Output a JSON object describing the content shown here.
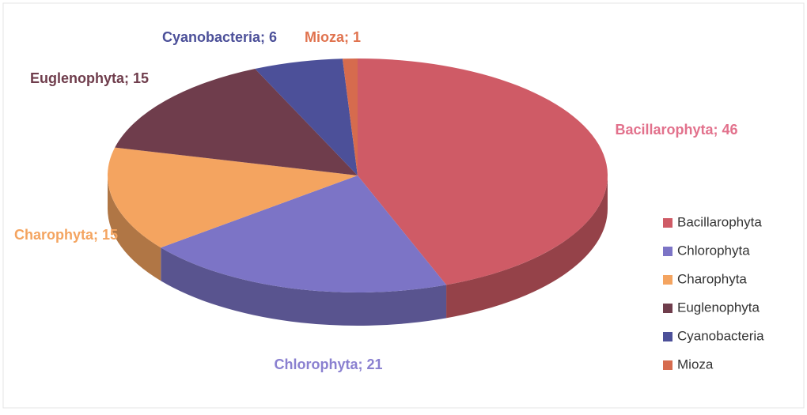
{
  "chart_data": {
    "type": "pie3d",
    "categories": [
      "Bacillarophyta",
      "Chlorophyta",
      "Charophyta",
      "Euglenophyta",
      "Cyanobacteria",
      "Mioza"
    ],
    "values": [
      46,
      21,
      15,
      15,
      6,
      1
    ],
    "value_labels": [
      "Bacillarophyta; 46",
      "Chlorophyta; 21",
      "Charophyta; 15",
      "Euglenophyta; 15",
      "Cyanobacteria; 6",
      "Mioza; 1"
    ],
    "colors": [
      "#cf5b66",
      "#7c74c6",
      "#f4a460",
      "#6f3d4c",
      "#4c5099",
      "#d66b4e"
    ],
    "label_colors": [
      "#e2718c",
      "#8a80d0",
      "#f4a460",
      "#6f3d4c",
      "#4c5099",
      "#e0734f"
    ],
    "legend": "right"
  }
}
